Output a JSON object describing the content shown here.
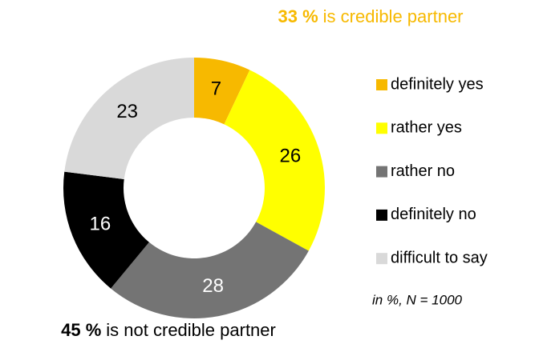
{
  "chart_data": {
    "type": "donut",
    "categories": [
      "definitely yes",
      "rather yes",
      "rather no",
      "definitely no",
      "difficult to say"
    ],
    "values": [
      7,
      26,
      28,
      16,
      23
    ],
    "colors": [
      "#f7b900",
      "#ffff00",
      "#747474",
      "#000000",
      "#d9d9d9"
    ],
    "annotations": [
      {
        "bold": "33 %",
        "text": "is credible partner",
        "color": "#f7b900"
      },
      {
        "bold": "45 %",
        "text": "is not credible partner",
        "color": "#000000"
      }
    ],
    "note": "in %, N = 1000"
  }
}
